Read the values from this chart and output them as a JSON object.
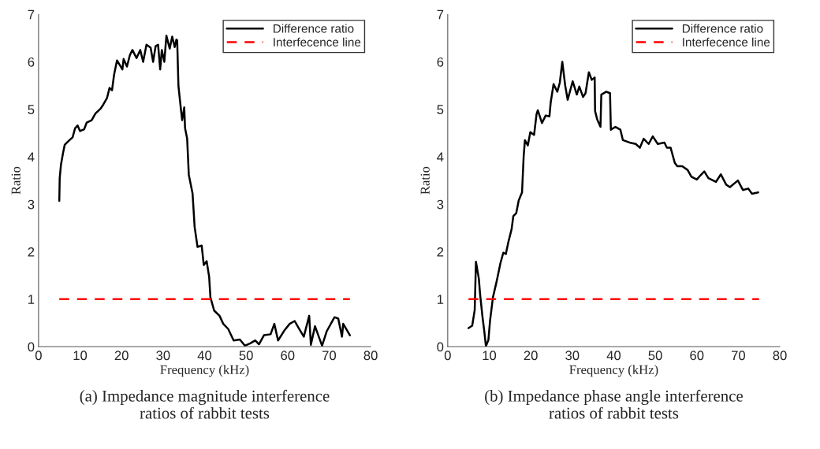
{
  "chart_data": [
    {
      "type": "line",
      "xlabel": "Frequency (kHz)",
      "ylabel": "Ratio",
      "xlim": [
        0,
        80
      ],
      "xticks": [
        0,
        10,
        20,
        30,
        40,
        50,
        60,
        70,
        80
      ],
      "ylim": [
        0,
        7
      ],
      "yticks": [
        0,
        1,
        2,
        3,
        4,
        5,
        6,
        7
      ],
      "grid": false,
      "legend": "top right",
      "annotations": [
        "(a) Impedance magnitude interference ratios of rabbit tests"
      ],
      "series": [
        {
          "name": "Difference ratio",
          "color": "#000000",
          "line_style": "solid",
          "x": [
            5,
            5.1,
            5.4,
            5.9,
            6.3,
            7.2,
            8.2,
            8.8,
            9.4,
            10,
            11,
            11.6,
            12.8,
            13.7,
            15,
            15.6,
            16.5,
            17.1,
            17.7,
            18.2,
            18.9,
            20.2,
            20.5,
            21.3,
            22,
            22.6,
            23.6,
            24.5,
            25.2,
            26,
            27,
            27.6,
            28.2,
            28.8,
            29.3,
            29.7,
            30.3,
            30.8,
            31.6,
            32.2,
            32.8,
            33.2,
            33.4,
            33.7,
            34.3,
            34.6,
            35.1,
            35.3,
            35.8,
            36.2,
            37.1,
            37.6,
            38.3,
            39.3,
            39.8,
            40.5,
            41.1,
            41.4,
            42.3,
            43.6,
            44.5,
            45.7,
            47,
            48.5,
            49.7,
            51,
            52.2,
            53.1,
            54.3,
            55.9,
            56.8,
            57.7,
            59.3,
            60.5,
            61.7,
            62.6,
            63.9,
            65.2,
            65.6,
            66.6,
            68.3,
            69.4,
            71.3,
            72.2,
            73.1,
            73.4,
            75
          ],
          "values": [
            3.07,
            3.55,
            3.83,
            4.08,
            4.25,
            4.33,
            4.41,
            4.6,
            4.66,
            4.54,
            4.58,
            4.72,
            4.77,
            4.91,
            5.02,
            5.1,
            5.24,
            5.45,
            5.4,
            5.73,
            6.03,
            5.84,
            6.06,
            5.9,
            6.14,
            6.25,
            6.08,
            6.25,
            6.0,
            6.36,
            6.3,
            6.0,
            6.33,
            6.36,
            5.84,
            6.25,
            6.0,
            6.55,
            6.28,
            6.53,
            6.31,
            6.47,
            6.45,
            5.49,
            5.0,
            4.77,
            5.04,
            4.6,
            4.38,
            3.62,
            3.23,
            2.52,
            2.1,
            2.13,
            1.72,
            1.8,
            1.47,
            1.04,
            0.76,
            0.65,
            0.48,
            0.37,
            0.13,
            0.15,
            0.02,
            0.07,
            0.13,
            0.05,
            0.24,
            0.26,
            0.48,
            0.13,
            0.35,
            0.48,
            0.54,
            0.4,
            0.21,
            0.65,
            0.04,
            0.43,
            0.02,
            0.32,
            0.62,
            0.59,
            0.21,
            0.48,
            0.24
          ]
        },
        {
          "name": "Interfecence line",
          "color": "#ff0000",
          "line_style": "dashed",
          "x": [
            5,
            75
          ],
          "values": [
            1,
            1
          ]
        }
      ]
    },
    {
      "type": "line",
      "xlabel": "Frequency (kHz)",
      "ylabel": "Ratio",
      "xlim": [
        0,
        80
      ],
      "xticks": [
        0,
        10,
        20,
        30,
        40,
        50,
        60,
        70,
        80
      ],
      "ylim": [
        0,
        7
      ],
      "yticks": [
        0,
        1,
        2,
        3,
        4,
        5,
        6,
        7
      ],
      "grid": false,
      "legend": "top right",
      "annotations": [
        "(b) Impedance phase angle interference ratios of rabbit tests"
      ],
      "series": [
        {
          "name": "Difference ratio",
          "color": "#000000",
          "line_style": "solid",
          "x": [
            5,
            5.9,
            6.5,
            6.8,
            7.5,
            7.8,
            8.4,
            8.8,
            9.2,
            9.8,
            10.2,
            10.9,
            11.8,
            12.7,
            13.4,
            14,
            14.6,
            15.4,
            15.8,
            16.5,
            17.1,
            17.9,
            18.3,
            18.6,
            19.3,
            19.9,
            20.8,
            21.4,
            21.7,
            22.7,
            23.6,
            24.5,
            24.8,
            25.5,
            26.4,
            27,
            27.6,
            28.3,
            28.9,
            30.1,
            31.1,
            31.7,
            32.6,
            33.2,
            34,
            34.7,
            35.4,
            35.5,
            36,
            36.8,
            37,
            38.2,
            39.1,
            39.3,
            40.4,
            41.6,
            42.2,
            43.8,
            45.3,
            46.3,
            47.2,
            48.4,
            49.4,
            50.6,
            52.2,
            52.8,
            53.7,
            54.7,
            55.3,
            56.5,
            57.8,
            58.7,
            60,
            60.9,
            61.8,
            62.8,
            64.6,
            65.8,
            67.1,
            68,
            69.9,
            71.1,
            72.4,
            73.3,
            74.8
          ],
          "values": [
            0.39,
            0.44,
            0.77,
            1.79,
            1.43,
            1.1,
            0.61,
            0.33,
            0.01,
            0.14,
            0.55,
            1.04,
            1.38,
            1.76,
            1.98,
            1.95,
            2.2,
            2.48,
            2.75,
            2.81,
            3.08,
            3.25,
            4.02,
            4.35,
            4.24,
            4.52,
            4.46,
            4.9,
            4.98,
            4.71,
            4.87,
            4.85,
            5.14,
            5.53,
            5.37,
            5.56,
            6.0,
            5.5,
            5.2,
            5.59,
            5.31,
            5.48,
            5.26,
            5.34,
            5.78,
            5.62,
            5.67,
            4.96,
            4.79,
            4.63,
            5.31,
            5.37,
            5.34,
            4.57,
            4.63,
            4.57,
            4.35,
            4.3,
            4.27,
            4.19,
            4.38,
            4.27,
            4.43,
            4.27,
            4.3,
            4.19,
            4.19,
            3.87,
            3.8,
            3.8,
            3.72,
            3.58,
            3.52,
            3.61,
            3.69,
            3.55,
            3.47,
            3.63,
            3.41,
            3.36,
            3.5,
            3.3,
            3.33,
            3.22,
            3.25
          ]
        },
        {
          "name": "Interfecence line",
          "color": "#ff0000",
          "line_style": "dashed",
          "x": [
            5,
            75
          ],
          "values": [
            1,
            1
          ]
        }
      ]
    }
  ]
}
